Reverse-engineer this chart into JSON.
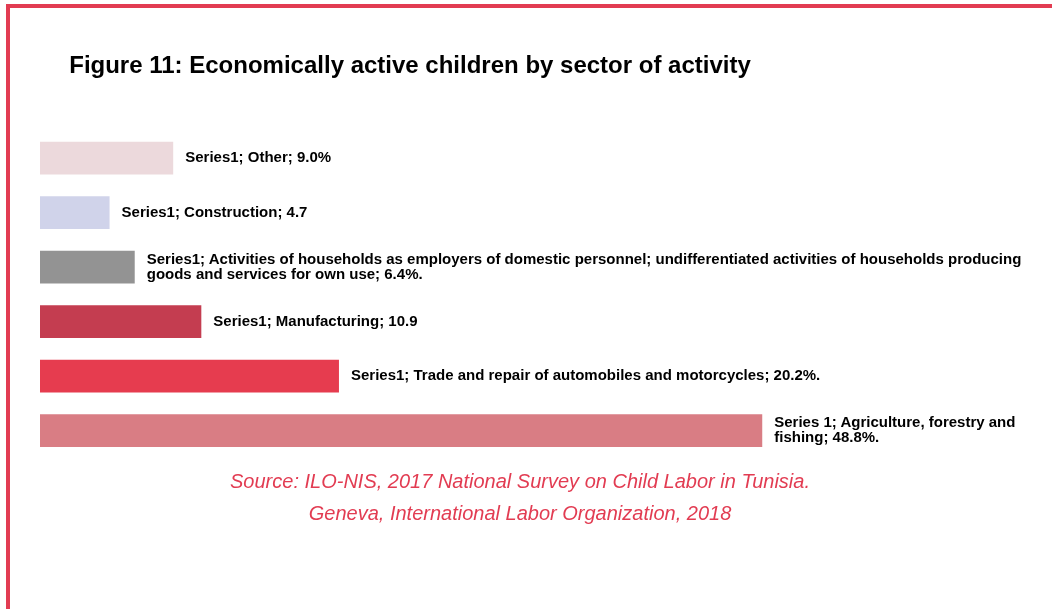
{
  "chart_data": {
    "type": "bar",
    "orientation": "horizontal",
    "title": "Figure 11: Economically active children by sector of activity",
    "categories": [
      null,
      null,
      null,
      null,
      null,
      null
    ],
    "values": [
      9.0,
      4.7,
      6.4,
      10.9,
      20.2,
      48.8
    ],
    "colors": [
      "#ecd9dc",
      "#d0d3ea",
      "#939393",
      "#c43d50",
      "#e63c4f",
      "#d97d84"
    ],
    "value_labels": [
      "Series1; Other; 9.0%",
      "Series1; Construction; 4.7",
      "Series1; Activities of households as employers of domestic personnel; undifferentiated activities of households producing goods and services for own use; 6.4%.",
      "Series1; Manufacturing; 10.9",
      "Series1; Trade and repair of automobiles and motorcycles; 20.2%.",
      "Series 1; Agriculture, forestry and fishing; 48.8%."
    ],
    "annotations": [
      "Source: ILO-NIS, 2017 National Survey on Child Labor in Tunisia.",
      "Geneva, International Labor Organization, 2018"
    ],
    "legend": false,
    "tick_labels": false
  }
}
